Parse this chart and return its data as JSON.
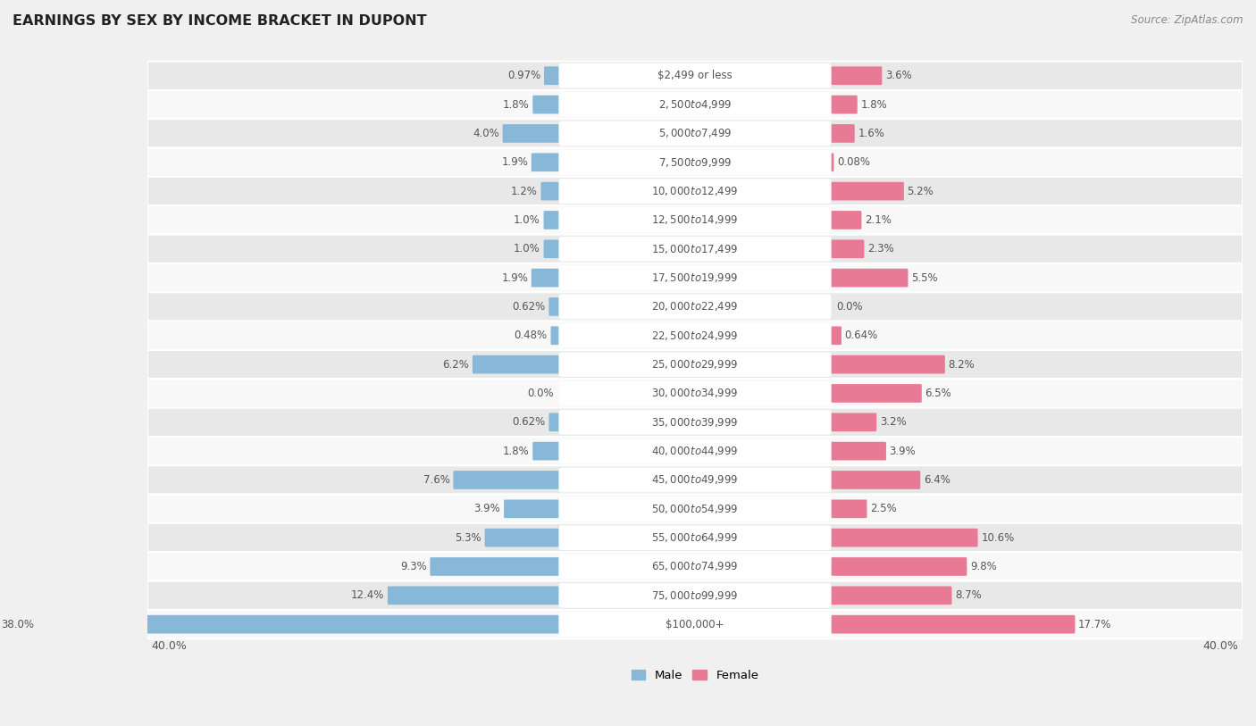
{
  "title": "EARNINGS BY SEX BY INCOME BRACKET IN DUPONT",
  "source": "Source: ZipAtlas.com",
  "categories": [
    "$2,499 or less",
    "$2,500 to $4,999",
    "$5,000 to $7,499",
    "$7,500 to $9,999",
    "$10,000 to $12,499",
    "$12,500 to $14,999",
    "$15,000 to $17,499",
    "$17,500 to $19,999",
    "$20,000 to $22,499",
    "$22,500 to $24,999",
    "$25,000 to $29,999",
    "$30,000 to $34,999",
    "$35,000 to $39,999",
    "$40,000 to $44,999",
    "$45,000 to $49,999",
    "$50,000 to $54,999",
    "$55,000 to $64,999",
    "$65,000 to $74,999",
    "$75,000 to $99,999",
    "$100,000+"
  ],
  "male": [
    0.97,
    1.8,
    4.0,
    1.9,
    1.2,
    1.0,
    1.0,
    1.9,
    0.62,
    0.48,
    6.2,
    0.0,
    0.62,
    1.8,
    7.6,
    3.9,
    5.3,
    9.3,
    12.4,
    38.0
  ],
  "female": [
    3.6,
    1.8,
    1.6,
    0.08,
    5.2,
    2.1,
    2.3,
    5.5,
    0.0,
    0.64,
    8.2,
    6.5,
    3.2,
    3.9,
    6.4,
    2.5,
    10.6,
    9.8,
    8.7,
    17.7
  ],
  "male_color": "#88b8d8",
  "female_color": "#e87a96",
  "bar_height": 0.52,
  "xlim": 40.0,
  "label_reserve": 10.0,
  "bg_color": "#f0f0f0",
  "row_colors": [
    "#e8e8e8",
    "#f8f8f8"
  ],
  "label_bg": "#ffffff",
  "label_color": "#555555",
  "value_color": "#555555",
  "title_color": "#222222",
  "source_color": "#888888"
}
